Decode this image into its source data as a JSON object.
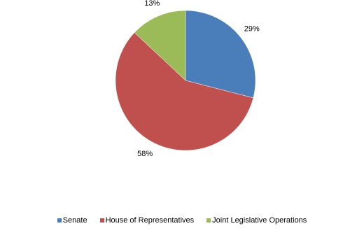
{
  "chart_data": {
    "type": "pie",
    "categories": [
      "Senate",
      "House of Representatives",
      "Joint Legislative Operations"
    ],
    "values": [
      29,
      58,
      13
    ],
    "value_labels": [
      "29%",
      "58%",
      "13%"
    ],
    "colors": [
      "#4a7ebb",
      "#c0504d",
      "#9bbb59"
    ],
    "legend": "bottom"
  }
}
